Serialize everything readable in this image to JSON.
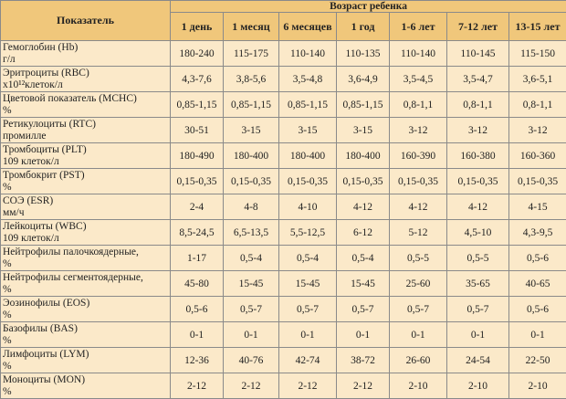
{
  "header": {
    "parameter": "Показатель",
    "age_group": "Возраст ребенка",
    "ages": [
      "1 день",
      "1 месяц",
      "6 месяцев",
      "1 год",
      "1-6 лет",
      "7-12 лет",
      "13-15 лет"
    ]
  },
  "rows": [
    {
      "name": "Гемоглобин (Hb)",
      "unit": "г/л",
      "values": [
        "180-240",
        "115-175",
        "110-140",
        "110-135",
        "110-140",
        "110-145",
        "115-150"
      ]
    },
    {
      "name": "Эритроциты (RBC)",
      "unit": "x10¹²клеток/л",
      "values": [
        "4,3-7,6",
        "3,8-5,6",
        "3,5-4,8",
        "3,6-4,9",
        "3,5-4,5",
        "3,5-4,7",
        "3,6-5,1"
      ]
    },
    {
      "name": "Цветовой показатель (MCHC)",
      "unit": "%",
      "values": [
        "0,85-1,15",
        "0,85-1,15",
        "0,85-1,15",
        "0,85-1,15",
        "0,8-1,1",
        "0,8-1,1",
        "0,8-1,1"
      ]
    },
    {
      "name": "Ретикулоциты (RTC)",
      "unit": "промилле",
      "values": [
        "30-51",
        "3-15",
        "3-15",
        "3-15",
        "3-12",
        "3-12",
        "3-12"
      ]
    },
    {
      "name": "Тромбоциты (PLT)",
      "unit": "109 клеток/л",
      "values": [
        "180-490",
        "180-400",
        "180-400",
        "180-400",
        "160-390",
        "160-380",
        "160-360"
      ]
    },
    {
      "name": "Тромбокрит (PST)",
      "unit": "%",
      "values": [
        "0,15-0,35",
        "0,15-0,35",
        "0,15-0,35",
        "0,15-0,35",
        "0,15-0,35",
        "0,15-0,35",
        "0,15-0,35"
      ]
    },
    {
      "name": "СОЭ (ESR)",
      "unit": "мм/ч",
      "values": [
        "2-4",
        "4-8",
        "4-10",
        "4-12",
        "4-12",
        "4-12",
        "4-15"
      ]
    },
    {
      "name": "Лейкоциты (WBC)",
      "unit": "109 клеток/л",
      "values": [
        "8,5-24,5",
        "6,5-13,5",
        "5,5-12,5",
        "6-12",
        "5-12",
        "4,5-10",
        "4,3-9,5"
      ]
    },
    {
      "name": "Нейтрофилы палочкоядерные,",
      "unit": "%",
      "values": [
        "1-17",
        "0,5-4",
        "0,5-4",
        "0,5-4",
        "0,5-5",
        "0,5-5",
        "0,5-6"
      ]
    },
    {
      "name": "Нейтрофилы сегментоядерные,",
      "unit": "%",
      "values": [
        "45-80",
        "15-45",
        "15-45",
        "15-45",
        "25-60",
        "35-65",
        "40-65"
      ]
    },
    {
      "name": "Эозинофилы (EOS)",
      "unit": "%",
      "values": [
        "0,5-6",
        "0,5-7",
        "0,5-7",
        "0,5-7",
        "0,5-7",
        "0,5-7",
        "0,5-6"
      ]
    },
    {
      "name": "Базофилы (BAS)",
      "unit": "%",
      "values": [
        "0-1",
        "0-1",
        "0-1",
        "0-1",
        "0-1",
        "0-1",
        "0-1"
      ]
    },
    {
      "name": "Лимфоциты (LYM)",
      "unit": "%",
      "values": [
        "12-36",
        "40-76",
        "42-74",
        "38-72",
        "26-60",
        "24-54",
        "22-50"
      ]
    },
    {
      "name": "Моноциты (MON)",
      "unit": "%",
      "values": [
        "2-12",
        "2-12",
        "2-12",
        "2-12",
        "2-10",
        "2-10",
        "2-10"
      ]
    }
  ]
}
